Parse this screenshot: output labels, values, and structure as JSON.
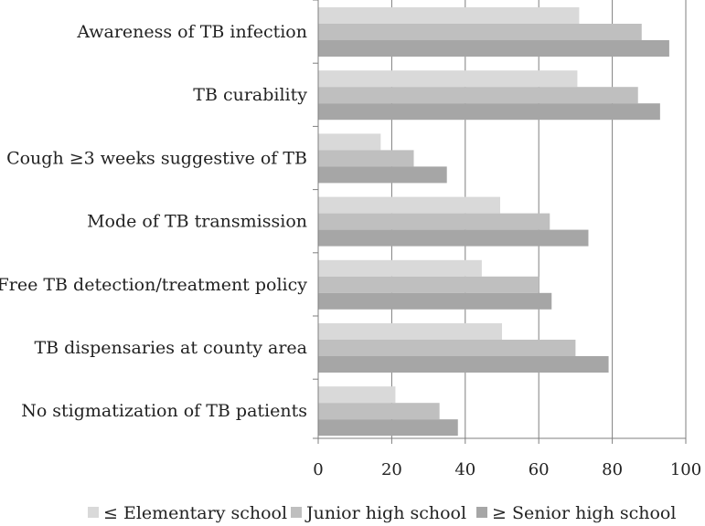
{
  "chart_data": {
    "type": "bar",
    "orientation": "horizontal",
    "categories": [
      "Awareness of TB infection",
      "TB curability",
      "Cough ≥3 weeks suggestive of TB",
      "Mode of TB transmission",
      "Free TB detection/treatment policy",
      "TB dispensaries at county area",
      "No stigmatization of TB patients"
    ],
    "series": [
      {
        "name": "≤ Elementary school",
        "color": "#d9d9d9",
        "values": [
          71,
          70.5,
          17,
          49.5,
          44.5,
          50,
          21
        ]
      },
      {
        "name": "Junior high school",
        "color": "#bfbfbf",
        "values": [
          88,
          87,
          26,
          63,
          60,
          70,
          33
        ]
      },
      {
        "name": "≥ Senior high school",
        "color": "#a6a6a6",
        "values": [
          95.5,
          93,
          35,
          73.5,
          63.5,
          79,
          38
        ]
      }
    ],
    "xlim": [
      0,
      100
    ],
    "xticks": [
      "0",
      "20",
      "40",
      "60",
      "80",
      "100"
    ],
    "title": "",
    "xlabel": "",
    "ylabel": "",
    "grid": "vertical",
    "legend": "bottom"
  }
}
